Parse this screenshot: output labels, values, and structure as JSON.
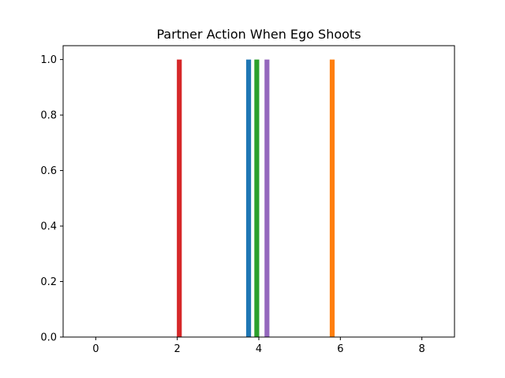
{
  "chart_data": {
    "type": "bar",
    "title": "Partner Action When Ego Shoots",
    "xlabel": "",
    "ylabel": "",
    "xlim": [
      -0.8,
      8.8
    ],
    "ylim": [
      0,
      1.05
    ],
    "xticks": [
      0,
      2,
      4,
      6,
      8
    ],
    "yticks": [
      0.0,
      0.2,
      0.4,
      0.6,
      0.8,
      1.0
    ],
    "xtick_labels": [
      "0",
      "2",
      "4",
      "6",
      "8"
    ],
    "ytick_labels": [
      "0.0",
      "0.2",
      "0.4",
      "0.6",
      "0.8",
      "1.0"
    ],
    "bar_width": 0.12,
    "grid": false,
    "legend": "none",
    "series": [
      {
        "x": 3.75,
        "value": 1.0,
        "color": "#1f77b4"
      },
      {
        "x": 5.8,
        "value": 1.0,
        "color": "#ff7f0e"
      },
      {
        "x": 3.95,
        "value": 1.0,
        "color": "#2ca02c"
      },
      {
        "x": 2.05,
        "value": 1.0,
        "color": "#d62728"
      },
      {
        "x": 4.2,
        "value": 1.0,
        "color": "#9467bd"
      }
    ]
  }
}
